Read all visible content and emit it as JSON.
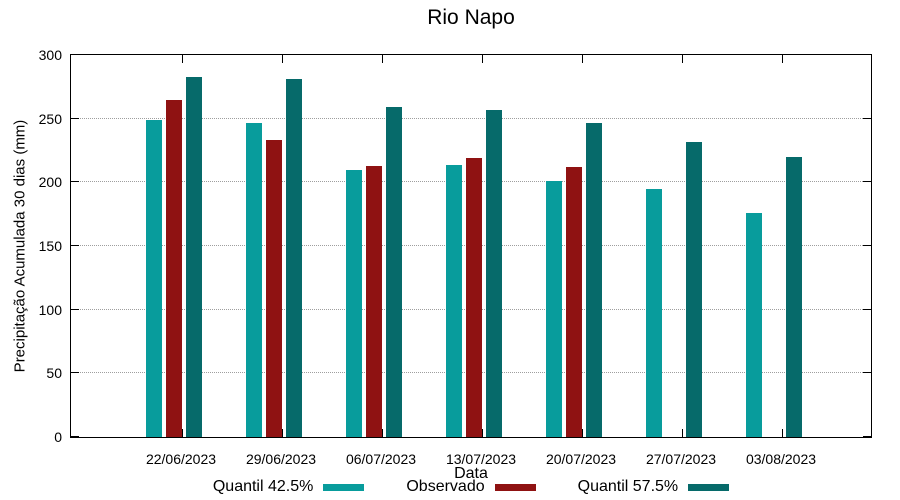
{
  "chart_data": {
    "type": "bar",
    "title": "Rio Napo",
    "xlabel": "Data",
    "ylabel": "Precipitação Acumulada 30 dias (mm)",
    "categories": [
      "22/06/2023",
      "29/06/2023",
      "06/07/2023",
      "13/07/2023",
      "20/07/2023",
      "27/07/2023",
      "03/08/2023"
    ],
    "series": [
      {
        "name": "Quantil 42.5%",
        "color": "#089C9C",
        "values": [
          249,
          247,
          210,
          214,
          201,
          195,
          176
        ]
      },
      {
        "name": "Observado",
        "color": "#8F1212",
        "values": [
          265,
          233,
          213,
          219,
          212,
          null,
          null
        ]
      },
      {
        "name": "Quantil 57.5%",
        "color": "#066A6A",
        "values": [
          283,
          281,
          259,
          257,
          247,
          232,
          220
        ]
      }
    ],
    "ylim": [
      0,
      300
    ],
    "yticks": [
      0,
      50,
      100,
      150,
      200,
      250,
      300
    ],
    "grid": "horizontal-dotted",
    "legend_position": "bottom"
  },
  "colors": {
    "axis": "#000000",
    "grid": "#9E9E9E",
    "background": "#FFFFFF",
    "text": "#000000"
  }
}
